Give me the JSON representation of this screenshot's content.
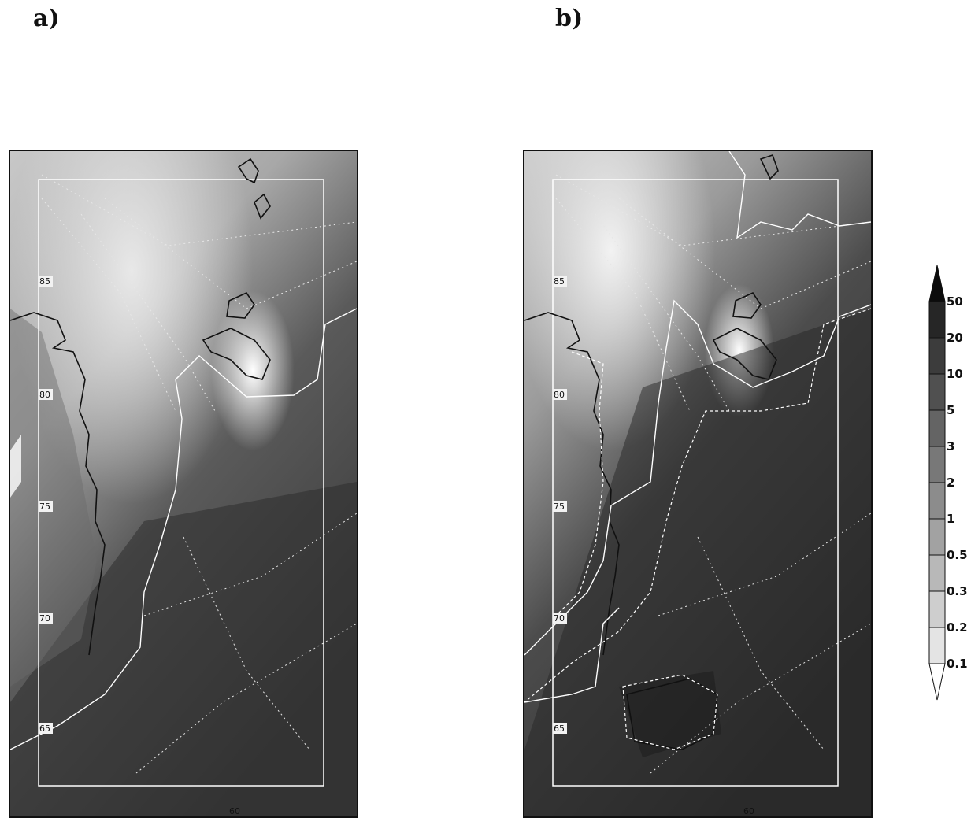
{
  "panels": [
    {
      "label": "a)",
      "lat_labels": [
        "85",
        "80",
        "75",
        "70",
        "65"
      ],
      "lon_label": "60"
    },
    {
      "label": "b)",
      "lat_labels": [
        "85",
        "80",
        "75",
        "70",
        "65"
      ],
      "lon_label": "60"
    }
  ],
  "colorbar": {
    "ticks": [
      "50",
      "20",
      "10",
      "5",
      "3",
      "2",
      "1",
      "0.5",
      "0.3",
      "0.2",
      "0.1"
    ],
    "extend": "both",
    "colors": [
      "#0c0c0c",
      "#262626",
      "#3c3c3c",
      "#505050",
      "#646464",
      "#787878",
      "#8c8c8c",
      "#a2a2a2",
      "#b8b8b8",
      "#cecece",
      "#e4e4e4",
      "#ffffff"
    ]
  },
  "colors": {
    "land_boundary": "#111111",
    "grid_lines": "#e6e6e6",
    "domain_box": "#ffffff"
  }
}
